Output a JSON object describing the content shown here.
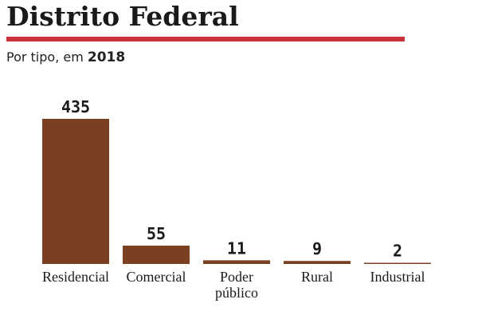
{
  "header": {
    "title": "Distrito Federal",
    "subtitle_prefix": "Por tipo, em ",
    "subtitle_year": "2018"
  },
  "colors": {
    "bar": "#7b3f22",
    "rule": "#c8323a"
  },
  "chart_data": {
    "type": "bar",
    "categories": [
      [
        "Residencial"
      ],
      [
        "Comercial"
      ],
      [
        "Poder",
        "público"
      ],
      [
        "Rural"
      ],
      [
        "Industrial"
      ]
    ],
    "values": [
      435,
      55,
      11,
      9,
      2
    ],
    "title": "Distrito Federal",
    "subtitle": "Por tipo, em 2018",
    "xlabel": "",
    "ylabel": "",
    "ylim": [
      0,
      435
    ],
    "grid": false,
    "legend": "none"
  }
}
